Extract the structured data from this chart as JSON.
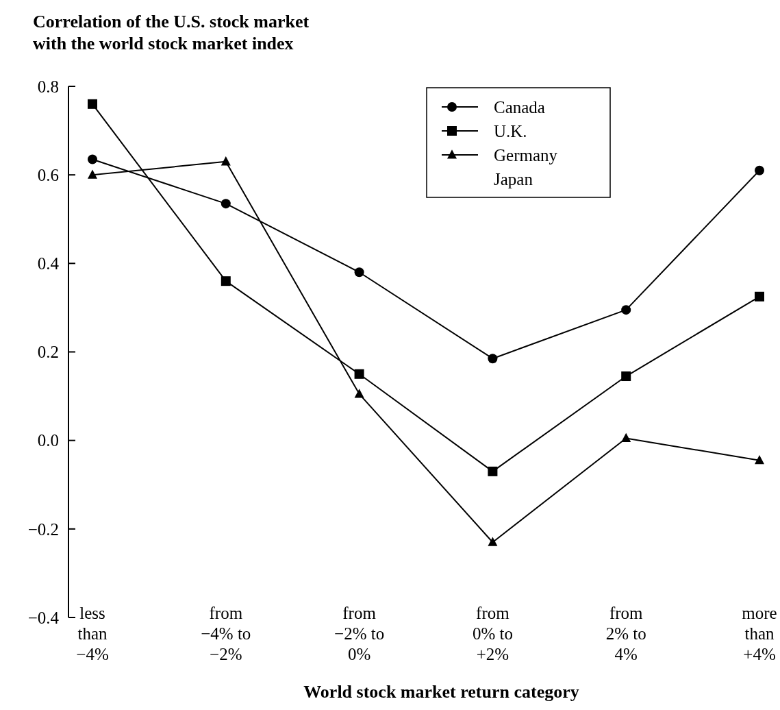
{
  "chart_data": {
    "type": "line",
    "title": "Correlation of the U.S. stock market\nwith the world stock market index",
    "xlabel": "World stock market return category",
    "categories": [
      "less\nthan\n−4%",
      "from\n−4% to\n−2%",
      "from\n−2% to\n0%",
      "from\n0% to\n+2%",
      "from\n2% to\n4%",
      "more\nthan\n+4%"
    ],
    "series": [
      {
        "name": "Canada",
        "color": "#000000",
        "marker": "circle",
        "values": [
          0.635,
          0.535,
          0.38,
          0.185,
          0.295,
          0.61
        ]
      },
      {
        "name": "U.K.",
        "color": "#000000",
        "marker": "square",
        "values": [
          0.76,
          0.36,
          0.15,
          -0.07,
          0.145,
          0.325
        ]
      },
      {
        "name": "Germany",
        "color": "#000000",
        "marker": "triangle",
        "values": [
          0.6,
          0.63,
          0.105,
          -0.23,
          0.005,
          -0.045
        ]
      },
      {
        "name": "Japan",
        "values": [
          null,
          null,
          null,
          null,
          null,
          null
        ]
      }
    ],
    "ylim": [
      -0.4,
      0.8
    ],
    "yticks": [
      {
        "value": -0.4,
        "label": "−0.4"
      },
      {
        "value": -0.2,
        "label": "−0.2"
      },
      {
        "value": 0,
        "label": "0.0"
      },
      0.2,
      0.4,
      0.6,
      0.8
    ],
    "legend": "top right",
    "grid": false,
    "line_style": "solid"
  }
}
